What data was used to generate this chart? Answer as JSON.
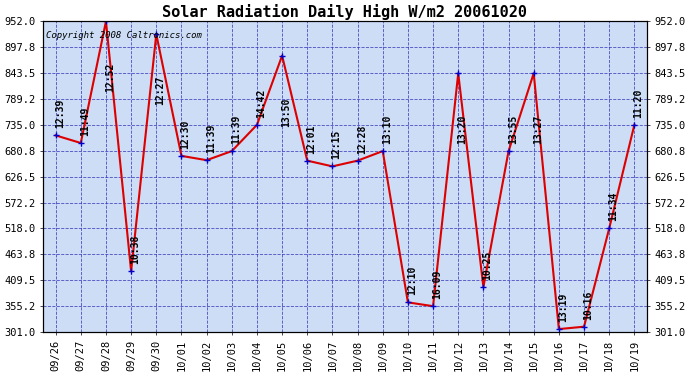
{
  "title": "Solar Radiation Daily High W/m2 20061020",
  "copyright": "Copyright 2008 Caltronics.com",
  "x_labels": [
    "09/26",
    "09/27",
    "09/28",
    "09/29",
    "09/30",
    "10/01",
    "10/02",
    "10/03",
    "10/04",
    "10/05",
    "10/06",
    "10/07",
    "10/08",
    "10/09",
    "10/10",
    "10/11",
    "10/12",
    "10/13",
    "10/14",
    "10/15",
    "10/16",
    "10/17",
    "10/18",
    "10/19"
  ],
  "y_values": [
    713,
    697,
    952,
    428,
    925,
    670,
    661,
    680,
    735,
    880,
    660,
    648,
    660,
    680,
    363,
    355,
    843,
    395,
    680,
    843,
    307,
    312,
    518,
    735
  ],
  "annotations": [
    "12:39",
    "11:49",
    "12:52",
    "10:38",
    "12:27",
    "12:30",
    "11:39",
    "11:39",
    "14:42",
    "13:50",
    "12:01",
    "12:15",
    "12:28",
    "13:10",
    "12:10",
    "16:09",
    "13:20",
    "10:25",
    "13:55",
    "13:27",
    "13:19",
    "10:16",
    "11:34",
    "11:20"
  ],
  "ylim_min": 301.0,
  "ylim_max": 952.0,
  "yticks": [
    301.0,
    355.2,
    409.5,
    463.8,
    518.0,
    572.2,
    626.5,
    680.8,
    735.0,
    789.2,
    843.5,
    897.8,
    952.0
  ],
  "line_color": "#DD0000",
  "marker_color": "#0000CC",
  "grid_color": "#3333BB",
  "bg_color": "#FFFFFF",
  "plot_bg_color": "#CCDDF5",
  "annotation_color": "#000000",
  "annotation_fontsize": 7.0,
  "tick_fontsize": 7.5,
  "title_fontsize": 11,
  "copyright_fontsize": 6.5
}
